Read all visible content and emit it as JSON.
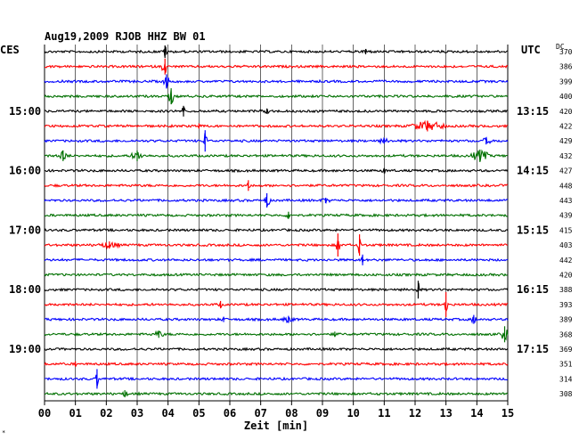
{
  "chart_data": {
    "type": "line",
    "title": "Aug19,2009  RJOB HHZ BW 01",
    "left_timezone": "CES",
    "right_timezone": "UTC",
    "dc_header": "DC",
    "xlabel": "Zeit [min]",
    "xlim": [
      0,
      15
    ],
    "x_ticks": [
      "00",
      "01",
      "02",
      "03",
      "04",
      "05",
      "06",
      "07",
      "08",
      "09",
      "10",
      "11",
      "12",
      "13",
      "14",
      "15"
    ],
    "grid": true,
    "trace_colors": [
      "#000000",
      "#ff0000",
      "#0000ff",
      "#007000"
    ],
    "left_time_labels": [
      {
        "trace": 4,
        "text": "15:00"
      },
      {
        "trace": 8,
        "text": "16:00"
      },
      {
        "trace": 12,
        "text": "17:00"
      },
      {
        "trace": 16,
        "text": "18:00"
      },
      {
        "trace": 20,
        "text": "19:00"
      }
    ],
    "right_time_labels": [
      {
        "trace": 4,
        "text": "13:15"
      },
      {
        "trace": 8,
        "text": "14:15"
      },
      {
        "trace": 12,
        "text": "15:15"
      },
      {
        "trace": 16,
        "text": "16:15"
      },
      {
        "trace": 20,
        "text": "17:15"
      }
    ],
    "dc_offsets": [
      370,
      386,
      399,
      400,
      420,
      422,
      429,
      432,
      427,
      448,
      443,
      439,
      415,
      403,
      442,
      420,
      388,
      393,
      389,
      368,
      369,
      351,
      314,
      308
    ],
    "events": [
      {
        "trace": 0,
        "x": 3.9,
        "amp": 7,
        "len": 0.1
      },
      {
        "trace": 0,
        "x": 10.4,
        "amp": 3,
        "len": 0.2
      },
      {
        "trace": 1,
        "x": 3.9,
        "amp": 9,
        "len": 0.1
      },
      {
        "trace": 2,
        "x": 3.95,
        "amp": 8,
        "len": 0.1
      },
      {
        "trace": 3,
        "x": 4.1,
        "amp": 9,
        "len": 0.1
      },
      {
        "trace": 4,
        "x": 4.5,
        "amp": 6,
        "len": 0.05
      },
      {
        "trace": 4,
        "x": 7.2,
        "amp": 3,
        "len": 0.2
      },
      {
        "trace": 5,
        "x": 12.4,
        "amp": 6,
        "len": 0.6
      },
      {
        "trace": 5,
        "x": 5.0,
        "amp": 3,
        "len": 0.1
      },
      {
        "trace": 6,
        "x": 5.2,
        "amp": 12,
        "len": 0.05
      },
      {
        "trace": 6,
        "x": 14.3,
        "amp": 4,
        "len": 0.2
      },
      {
        "trace": 6,
        "x": 11.0,
        "amp": 3,
        "len": 0.3
      },
      {
        "trace": 7,
        "x": 0.6,
        "amp": 6,
        "len": 0.2
      },
      {
        "trace": 7,
        "x": 3.0,
        "amp": 6,
        "len": 0.2
      },
      {
        "trace": 7,
        "x": 14.1,
        "amp": 7,
        "len": 0.3
      },
      {
        "trace": 8,
        "x": 11.0,
        "amp": 3,
        "len": 0.1
      },
      {
        "trace": 9,
        "x": 6.6,
        "amp": 6,
        "len": 0.05
      },
      {
        "trace": 10,
        "x": 7.2,
        "amp": 8,
        "len": 0.1
      },
      {
        "trace": 10,
        "x": 9.1,
        "amp": 3,
        "len": 0.2
      },
      {
        "trace": 11,
        "x": 7.9,
        "amp": 4,
        "len": 0.1
      },
      {
        "trace": 13,
        "x": 2.1,
        "amp": 4,
        "len": 0.4
      },
      {
        "trace": 13,
        "x": 9.5,
        "amp": 13,
        "len": 0.05
      },
      {
        "trace": 13,
        "x": 10.2,
        "amp": 12,
        "len": 0.05
      },
      {
        "trace": 14,
        "x": 10.3,
        "amp": 6,
        "len": 0.05
      },
      {
        "trace": 16,
        "x": 12.1,
        "amp": 10,
        "len": 0.05
      },
      {
        "trace": 17,
        "x": 13.0,
        "amp": 14,
        "len": 0.05
      },
      {
        "trace": 17,
        "x": 5.7,
        "amp": 4,
        "len": 0.05
      },
      {
        "trace": 18,
        "x": 7.9,
        "amp": 4,
        "len": 0.2
      },
      {
        "trace": 18,
        "x": 13.9,
        "amp": 5,
        "len": 0.1
      },
      {
        "trace": 18,
        "x": 5.8,
        "amp": 3,
        "len": 0.1
      },
      {
        "trace": 19,
        "x": 3.7,
        "amp": 4,
        "len": 0.2
      },
      {
        "trace": 19,
        "x": 14.9,
        "amp": 9,
        "len": 0.1
      },
      {
        "trace": 19,
        "x": 9.4,
        "amp": 3,
        "len": 0.1
      },
      {
        "trace": 21,
        "x": 1.0,
        "amp": 3,
        "len": 0.05
      },
      {
        "trace": 22,
        "x": 1.7,
        "amp": 11,
        "len": 0.05
      },
      {
        "trace": 23,
        "x": 2.6,
        "amp": 4,
        "len": 0.1
      }
    ]
  }
}
